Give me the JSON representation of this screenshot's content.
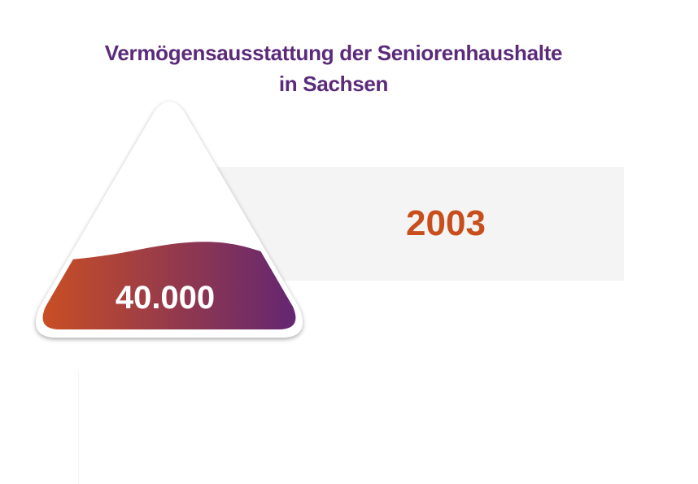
{
  "title": {
    "line1": "Vermögensausstattung der Seniorenhaushalte",
    "line2": "in Sachsen"
  },
  "year": "2003",
  "graphic": {
    "value": "40.000",
    "gradient_start": "#d0511f",
    "gradient_end": "#5b2378"
  },
  "colors": {
    "title": "#5b2a7a",
    "year": "#c94e1d",
    "band": "#f4f4f4"
  }
}
